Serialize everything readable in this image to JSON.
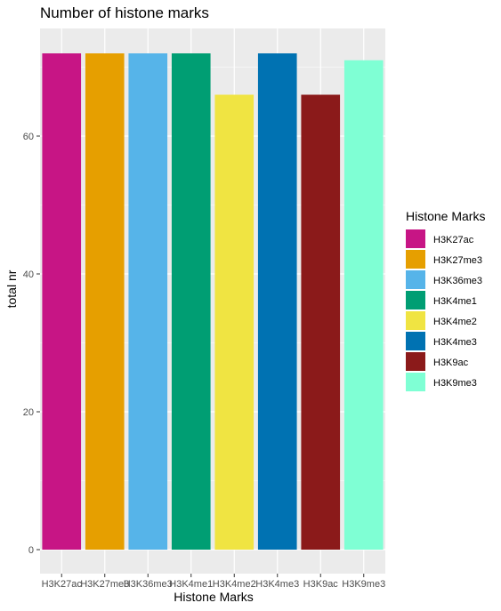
{
  "chart_data": {
    "type": "bar",
    "title": "Number of histone marks",
    "xlabel": "Histone Marks",
    "ylabel": "total nr",
    "categories": [
      "H3K27ac",
      "H3K27me3",
      "H3K36me3",
      "H3K4me1",
      "H3K4me2",
      "H3K4me3",
      "H3K9ac",
      "H3K9me3"
    ],
    "values": [
      72,
      72,
      72,
      72,
      66,
      72,
      66,
      71
    ],
    "colors": [
      "#C71585",
      "#E69F00",
      "#56B4E9",
      "#009E73",
      "#F0E442",
      "#0072B2",
      "#8B1A1A",
      "#7FFFD4"
    ],
    "yticks": [
      0,
      20,
      40,
      60
    ],
    "ylim": [
      0,
      75.6
    ],
    "grid": true,
    "legend": {
      "title": "Histone Marks",
      "position": "right",
      "entries": [
        "H3K27ac",
        "H3K27me3",
        "H3K36me3",
        "H3K4me1",
        "H3K4me2",
        "H3K4me3",
        "H3K9ac",
        "H3K9me3"
      ]
    },
    "panel_background": "#EBEBEB",
    "grid_color": "#FFFFFF"
  }
}
